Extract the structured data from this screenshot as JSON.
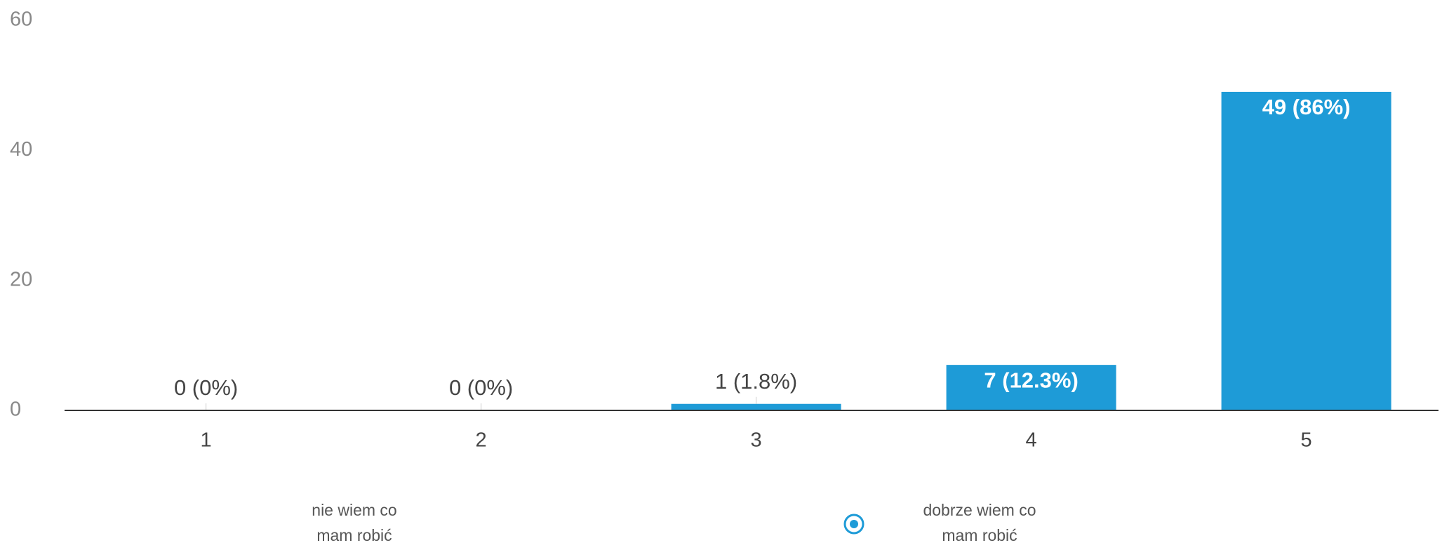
{
  "chart_data": {
    "type": "bar",
    "categories": [
      "1",
      "2",
      "3",
      "4",
      "5"
    ],
    "values": [
      0,
      0,
      1,
      7,
      49
    ],
    "value_labels": [
      "0 (0%)",
      "0 (0%)",
      "1 (1.8%)",
      "7 (12.3%)",
      "49 (86%)"
    ],
    "color": "#1e9bd7",
    "ylim": [
      0,
      60
    ],
    "yticks": [
      0,
      20,
      40,
      60
    ],
    "grid": false,
    "scale_low_label": [
      "nie wiem co",
      "mam robić"
    ],
    "scale_high_label": [
      "dobrze wiem co",
      "mam robić"
    ]
  }
}
